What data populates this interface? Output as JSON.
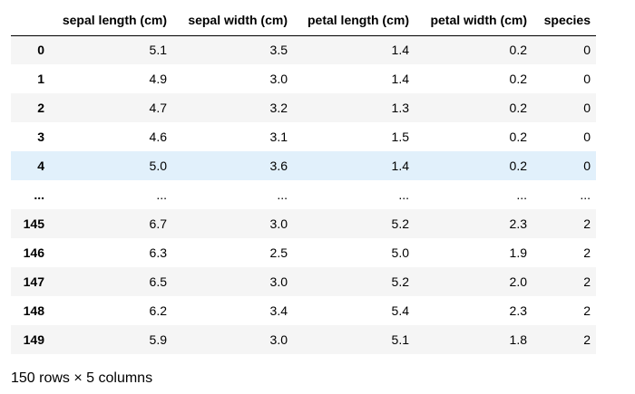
{
  "table": {
    "columns": [
      "sepal length (cm)",
      "sepal width (cm)",
      "petal length (cm)",
      "petal width (cm)",
      "species"
    ],
    "rows": [
      {
        "index": "0",
        "cells": [
          "5.1",
          "3.5",
          "1.4",
          "0.2",
          "0"
        ]
      },
      {
        "index": "1",
        "cells": [
          "4.9",
          "3.0",
          "1.4",
          "0.2",
          "0"
        ]
      },
      {
        "index": "2",
        "cells": [
          "4.7",
          "3.2",
          "1.3",
          "0.2",
          "0"
        ]
      },
      {
        "index": "3",
        "cells": [
          "4.6",
          "3.1",
          "1.5",
          "0.2",
          "0"
        ]
      },
      {
        "index": "4",
        "cells": [
          "5.0",
          "3.6",
          "1.4",
          "0.2",
          "0"
        ]
      },
      {
        "index": "...",
        "cells": [
          "...",
          "...",
          "...",
          "...",
          "..."
        ]
      },
      {
        "index": "145",
        "cells": [
          "6.7",
          "3.0",
          "5.2",
          "2.3",
          "2"
        ]
      },
      {
        "index": "146",
        "cells": [
          "6.3",
          "2.5",
          "5.0",
          "1.9",
          "2"
        ]
      },
      {
        "index": "147",
        "cells": [
          "6.5",
          "3.0",
          "5.2",
          "2.0",
          "2"
        ]
      },
      {
        "index": "148",
        "cells": [
          "6.2",
          "3.4",
          "5.4",
          "2.3",
          "2"
        ]
      },
      {
        "index": "149",
        "cells": [
          "5.9",
          "3.0",
          "5.1",
          "1.8",
          "2"
        ]
      }
    ],
    "highlighted_row": 4
  },
  "footer": "150 rows × 5 columns"
}
